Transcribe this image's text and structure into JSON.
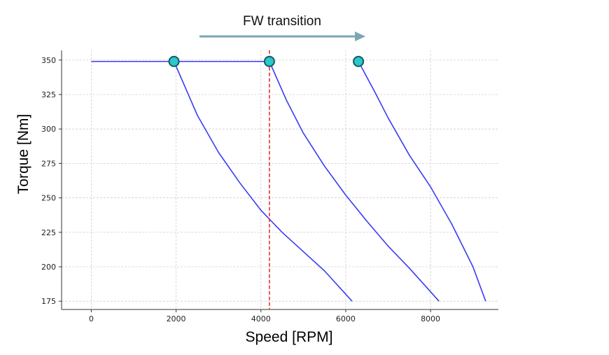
{
  "chart_data": {
    "type": "line",
    "xlabel": "Speed [RPM]",
    "ylabel": "Torque [Nm]",
    "xlim": [
      -700,
      9600
    ],
    "ylim": [
      169,
      357
    ],
    "xticks": [
      0,
      2000,
      4000,
      6000,
      8000
    ],
    "yticks": [
      175,
      200,
      225,
      250,
      275,
      300,
      325,
      350
    ],
    "grid": true,
    "annotation": {
      "text": "FW transition",
      "arrow": "right"
    },
    "base_speeds": [
      1950,
      4200,
      6300
    ],
    "end_speeds": [
      6150,
      8200,
      9300
    ],
    "rated_torque": 349,
    "vertical_line_x": 4200,
    "vertical_line_color": "#e8312f",
    "series": [
      {
        "x": [
          0,
          1950,
          2500,
          3000,
          3500,
          4000,
          4500,
          5000,
          5500,
          6150
        ],
        "y": [
          349,
          349,
          310,
          283,
          261,
          241,
          225,
          211,
          197,
          175
        ]
      },
      {
        "x": [
          1950,
          4200,
          4600,
          5000,
          5500,
          6000,
          6500,
          7000,
          7500,
          8200
        ],
        "y": [
          349,
          349,
          321,
          297,
          273,
          252,
          233,
          215,
          199,
          175
        ]
      },
      {
        "x": [
          6300,
          6700,
          7000,
          7500,
          8000,
          8500,
          9000,
          9300
        ],
        "y": [
          349,
          326,
          308,
          281,
          258,
          231,
          200,
          175
        ]
      }
    ],
    "markers": [
      {
        "x": 1950,
        "y": 349
      },
      {
        "x": 4200,
        "y": 349
      },
      {
        "x": 6300,
        "y": 349
      }
    ],
    "line_color": "#3b3bf5",
    "marker_fill": "#2bc7cc",
    "marker_edge": "#135b5f",
    "arrow_color": "#7aa7b2"
  }
}
